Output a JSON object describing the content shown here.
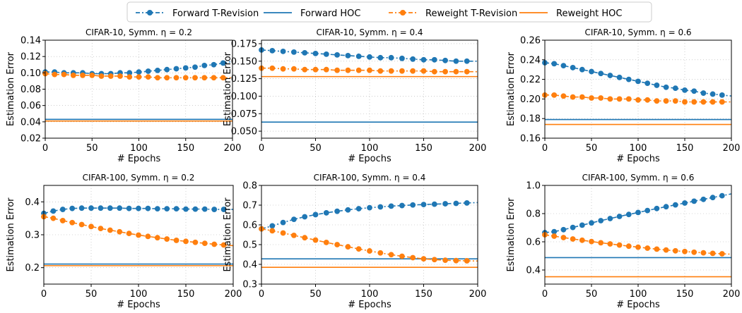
{
  "legend": {
    "items": [
      {
        "label": "Forward T-Revision",
        "color": "#1f77b4",
        "style": "dash-dot-marker"
      },
      {
        "label": "Forward HOC",
        "color": "#1f77b4",
        "style": "solid"
      },
      {
        "label": "Reweight T-Revision",
        "color": "#ff7f0e",
        "style": "dash-dot-marker"
      },
      {
        "label": "Reweight HOC",
        "color": "#ff7f0e",
        "style": "solid"
      }
    ]
  },
  "chart_data": [
    {
      "type": "line",
      "title": "CIFAR-10, Symm. η = 0.2",
      "xlabel": "# Epochs",
      "ylabel": "Estimation Error",
      "xlim": [
        0,
        200
      ],
      "ylim": [
        0.02,
        0.14
      ],
      "xticks": [
        "0",
        "50",
        "100",
        "150",
        "200"
      ],
      "yticks": [
        "0.02",
        "0.04",
        "0.06",
        "0.08",
        "0.10",
        "0.12",
        "0.14"
      ],
      "grid": true,
      "x": [
        0,
        10,
        20,
        30,
        40,
        50,
        60,
        70,
        80,
        90,
        100,
        110,
        120,
        130,
        140,
        150,
        160,
        170,
        180,
        190
      ],
      "series": [
        {
          "name": "Forward T-Revision",
          "values": [
            0.101,
            0.101,
            0.1,
            0.1,
            0.1,
            0.099,
            0.099,
            0.099,
            0.1,
            0.1,
            0.101,
            0.102,
            0.103,
            0.104,
            0.105,
            0.106,
            0.107,
            0.109,
            0.11,
            0.112
          ]
        },
        {
          "name": "Reweight T-Revision",
          "values": [
            0.099,
            0.098,
            0.098,
            0.097,
            0.097,
            0.097,
            0.096,
            0.096,
            0.096,
            0.095,
            0.095,
            0.095,
            0.094,
            0.094,
            0.094,
            0.094,
            0.094,
            0.094,
            0.094,
            0.094
          ]
        },
        {
          "name": "Forward HOC",
          "constant": 0.043
        },
        {
          "name": "Reweight HOC",
          "constant": 0.041
        }
      ]
    },
    {
      "type": "line",
      "title": "CIFAR-10, Symm. η = 0.4",
      "xlabel": "# Epochs",
      "ylabel": "Estimation Error",
      "xlim": [
        0,
        200
      ],
      "ylim": [
        0.04,
        0.18
      ],
      "xticks": [
        "0",
        "50",
        "100",
        "150",
        "200"
      ],
      "yticks": [
        "0.050",
        "0.075",
        "0.100",
        "0.125",
        "0.150",
        "0.175"
      ],
      "grid": true,
      "x": [
        0,
        10,
        20,
        30,
        40,
        50,
        60,
        70,
        80,
        90,
        100,
        110,
        120,
        130,
        140,
        150,
        160,
        170,
        180,
        190
      ],
      "series": [
        {
          "name": "Forward T-Revision",
          "values": [
            0.166,
            0.165,
            0.164,
            0.163,
            0.162,
            0.161,
            0.16,
            0.159,
            0.158,
            0.157,
            0.156,
            0.155,
            0.155,
            0.154,
            0.153,
            0.152,
            0.152,
            0.151,
            0.15,
            0.15
          ]
        },
        {
          "name": "Reweight T-Revision",
          "values": [
            0.14,
            0.14,
            0.139,
            0.139,
            0.138,
            0.138,
            0.138,
            0.137,
            0.137,
            0.137,
            0.137,
            0.136,
            0.136,
            0.136,
            0.136,
            0.136,
            0.135,
            0.135,
            0.135,
            0.135
          ]
        },
        {
          "name": "Forward HOC",
          "constant": 0.063
        },
        {
          "name": "Reweight HOC",
          "constant": 0.128
        }
      ]
    },
    {
      "type": "line",
      "title": "CIFAR-10, Symm. η = 0.6",
      "xlabel": "# Epochs",
      "ylabel": "Estimation Error",
      "xlim": [
        0,
        200
      ],
      "ylim": [
        0.16,
        0.26
      ],
      "xticks": [
        "0",
        "50",
        "100",
        "150",
        "200"
      ],
      "yticks": [
        "0.16",
        "0.18",
        "0.20",
        "0.22",
        "0.24",
        "0.26"
      ],
      "grid": true,
      "x": [
        0,
        10,
        20,
        30,
        40,
        50,
        60,
        70,
        80,
        90,
        100,
        110,
        120,
        130,
        140,
        150,
        160,
        170,
        180,
        190
      ],
      "series": [
        {
          "name": "Forward T-Revision",
          "values": [
            0.237,
            0.236,
            0.234,
            0.232,
            0.23,
            0.228,
            0.226,
            0.224,
            0.222,
            0.22,
            0.218,
            0.216,
            0.214,
            0.212,
            0.211,
            0.209,
            0.208,
            0.206,
            0.205,
            0.204
          ]
        },
        {
          "name": "Reweight T-Revision",
          "values": [
            0.204,
            0.204,
            0.203,
            0.202,
            0.202,
            0.201,
            0.201,
            0.2,
            0.2,
            0.2,
            0.199,
            0.199,
            0.198,
            0.198,
            0.198,
            0.197,
            0.197,
            0.197,
            0.197,
            0.197
          ]
        },
        {
          "name": "Forward HOC",
          "constant": 0.179
        },
        {
          "name": "Reweight HOC",
          "constant": 0.174
        }
      ]
    },
    {
      "type": "line",
      "title": "CIFAR-100, Symm. η = 0.2",
      "xlabel": "# Epochs",
      "ylabel": "Estimation Error",
      "xlim": [
        0,
        200
      ],
      "ylim": [
        0.15,
        0.45
      ],
      "xticks": [
        "0",
        "50",
        "100",
        "150",
        "200"
      ],
      "yticks": [
        "0.2",
        "0.3",
        "0.4"
      ],
      "grid": true,
      "x": [
        0,
        10,
        20,
        30,
        40,
        50,
        60,
        70,
        80,
        90,
        100,
        110,
        120,
        130,
        140,
        150,
        160,
        170,
        180,
        190
      ],
      "series": [
        {
          "name": "Forward T-Revision",
          "values": [
            0.365,
            0.372,
            0.377,
            0.38,
            0.381,
            0.381,
            0.381,
            0.381,
            0.381,
            0.38,
            0.38,
            0.38,
            0.379,
            0.379,
            0.379,
            0.378,
            0.378,
            0.378,
            0.377,
            0.377
          ]
        },
        {
          "name": "Reweight T-Revision",
          "values": [
            0.355,
            0.35,
            0.343,
            0.337,
            0.331,
            0.325,
            0.319,
            0.314,
            0.309,
            0.304,
            0.299,
            0.295,
            0.291,
            0.287,
            0.283,
            0.28,
            0.277,
            0.274,
            0.271,
            0.269
          ]
        },
        {
          "name": "Forward HOC",
          "constant": 0.211
        },
        {
          "name": "Reweight HOC",
          "constant": 0.206
        }
      ]
    },
    {
      "type": "line",
      "title": "CIFAR-100, Symm. η = 0.4",
      "xlabel": "# Epochs",
      "ylabel": "Estimation Error",
      "xlim": [
        0,
        200
      ],
      "ylim": [
        0.3,
        0.8
      ],
      "xticks": [
        "0",
        "50",
        "100",
        "150",
        "200"
      ],
      "yticks": [
        "0.3",
        "0.4",
        "0.5",
        "0.6",
        "0.7",
        "0.8"
      ],
      "grid": true,
      "x": [
        0,
        10,
        20,
        30,
        40,
        50,
        60,
        70,
        80,
        90,
        100,
        110,
        120,
        130,
        140,
        150,
        160,
        170,
        180,
        190
      ],
      "series": [
        {
          "name": "Forward T-Revision",
          "values": [
            0.58,
            0.595,
            0.612,
            0.628,
            0.641,
            0.652,
            0.661,
            0.669,
            0.676,
            0.682,
            0.687,
            0.691,
            0.695,
            0.698,
            0.701,
            0.703,
            0.705,
            0.707,
            0.709,
            0.711
          ]
        },
        {
          "name": "Reweight T-Revision",
          "values": [
            0.58,
            0.57,
            0.559,
            0.547,
            0.535,
            0.523,
            0.511,
            0.5,
            0.489,
            0.478,
            0.468,
            0.458,
            0.449,
            0.441,
            0.434,
            0.428,
            0.424,
            0.421,
            0.419,
            0.418
          ]
        },
        {
          "name": "Forward HOC",
          "constant": 0.428
        },
        {
          "name": "Reweight HOC",
          "constant": 0.385
        }
      ]
    },
    {
      "type": "line",
      "title": "CIFAR-100, Symm. η = 0.6",
      "xlabel": "# Epochs",
      "ylabel": "Estimation Error",
      "xlim": [
        0,
        200
      ],
      "ylim": [
        0.3,
        1.0
      ],
      "xticks": [
        "0",
        "50",
        "100",
        "150",
        "200"
      ],
      "yticks": [
        "0.4",
        "0.6",
        "0.8",
        "1.0"
      ],
      "grid": true,
      "x": [
        0,
        10,
        20,
        30,
        40,
        50,
        60,
        70,
        80,
        90,
        100,
        110,
        120,
        130,
        140,
        150,
        160,
        170,
        180,
        190
      ],
      "series": [
        {
          "name": "Forward T-Revision",
          "values": [
            0.665,
            0.672,
            0.686,
            0.702,
            0.718,
            0.734,
            0.75,
            0.765,
            0.78,
            0.794,
            0.808,
            0.822,
            0.836,
            0.849,
            0.862,
            0.875,
            0.888,
            0.901,
            0.914,
            0.927
          ]
        },
        {
          "name": "Reweight T-Revision",
          "values": [
            0.65,
            0.64,
            0.63,
            0.62,
            0.611,
            0.602,
            0.593,
            0.585,
            0.577,
            0.569,
            0.562,
            0.555,
            0.548,
            0.542,
            0.536,
            0.531,
            0.526,
            0.522,
            0.518,
            0.515
          ]
        },
        {
          "name": "Forward HOC",
          "constant": 0.488
        },
        {
          "name": "Reweight HOC",
          "constant": 0.352
        }
      ]
    }
  ]
}
